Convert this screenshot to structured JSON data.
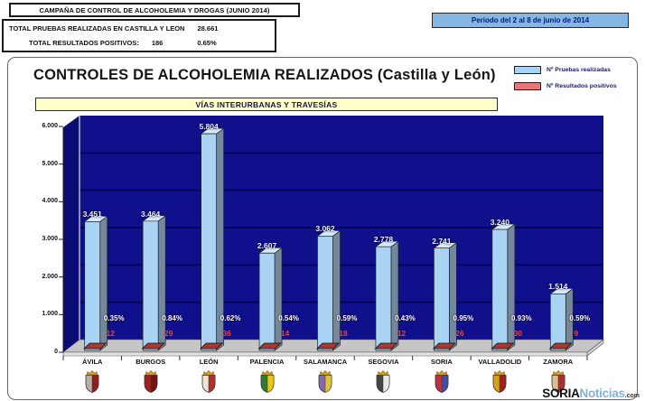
{
  "header": {
    "campaign_title": "CAMPAÑA DE CONTROL DE ALCOHOLEMIA Y DROGAS (JUNIO 2014)",
    "total_tests_label": "TOTAL PRUEBAS REALIZADAS EN CASTILLA Y LEON",
    "total_tests_value": "28.661",
    "total_positives_label": "TOTAL RESULTADOS POSITIVOS:",
    "total_positives_value": "186",
    "total_positives_pct": "0.65%",
    "period": "Periodo del 2 al 8 de junio de 2014"
  },
  "chart_data": {
    "type": "bar",
    "title": "CONTROLES DE ALCOHOLEMIA REALIZADOS (Castilla y León)",
    "subtitle": "VÍAS INTERURBANAS  Y TRAVESÍAS",
    "categories": [
      "ÁVILA",
      "BURGOS",
      "LEÓN",
      "PALENCIA",
      "SALAMANCA",
      "SEGOVIA",
      "SORIA",
      "VALLADOLID",
      "ZAMORA"
    ],
    "series": [
      {
        "name": "Nº Pruebas realizadas",
        "values": [
          3451,
          3464,
          5804,
          2607,
          3062,
          2778,
          2741,
          3240,
          1514
        ],
        "labels": [
          "3.451",
          "3.464",
          "5.804",
          "2.607",
          "3.062",
          "2.778",
          "2.741",
          "3.240",
          "1.514"
        ],
        "color": "#a9d3f3"
      },
      {
        "name": "Nº Resultados positivos",
        "values": [
          12,
          29,
          36,
          14,
          18,
          12,
          26,
          30,
          9
        ],
        "labels": [
          "12",
          "29",
          "36",
          "14",
          "18",
          "12",
          "26",
          "30",
          "9"
        ],
        "color": "#e87878"
      }
    ],
    "pct_labels": [
      "0.35%",
      "0.84%",
      "0.62%",
      "0.54%",
      "0.59%",
      "0.43%",
      "0.95%",
      "0.93%",
      "0.59%"
    ],
    "xlabel": "",
    "ylabel": "",
    "ylim": [
      0,
      6000
    ],
    "ytick_labels": [
      "6.000",
      "5.000",
      "4.000",
      "3.000",
      "2.000",
      "1.000",
      "0"
    ],
    "grid": true,
    "legend_position": "top-right",
    "wall_color": "#10108c",
    "left_wall_color": "#0b0b74",
    "gridline_color": "#04045c",
    "floor_color": "#c6c6c6",
    "bar_side_color": "#75879c",
    "bar_top_color": "#d6eafc",
    "positive_pad_color": "#a8392e"
  },
  "shields": [
    {
      "province": "ÁVILA",
      "colors": [
        "#b9b1a6",
        "#8a2020"
      ]
    },
    {
      "province": "BURGOS",
      "colors": [
        "#a32020",
        "#701414"
      ]
    },
    {
      "province": "LEÓN",
      "colors": [
        "#f0e6d2",
        "#b03030"
      ]
    },
    {
      "province": "PALENCIA",
      "colors": [
        "#2e7d32",
        "#e6c619"
      ]
    },
    {
      "province": "SALAMANCA",
      "colors": [
        "#8468ac",
        "#e0c040"
      ]
    },
    {
      "province": "SEGOVIA",
      "colors": [
        "#454545",
        "#e8e8e8"
      ]
    },
    {
      "province": "SORIA",
      "colors": [
        "#c03040",
        "#4050a0"
      ]
    },
    {
      "province": "VALLADOLID",
      "colors": [
        "#d4a017",
        "#a02020"
      ]
    },
    {
      "province": "ZAMORA",
      "colors": [
        "#d8c090",
        "#a83030"
      ]
    }
  ],
  "watermark": {
    "bold": "SORIA",
    "light": "Noticias",
    "suffix": ".com"
  }
}
